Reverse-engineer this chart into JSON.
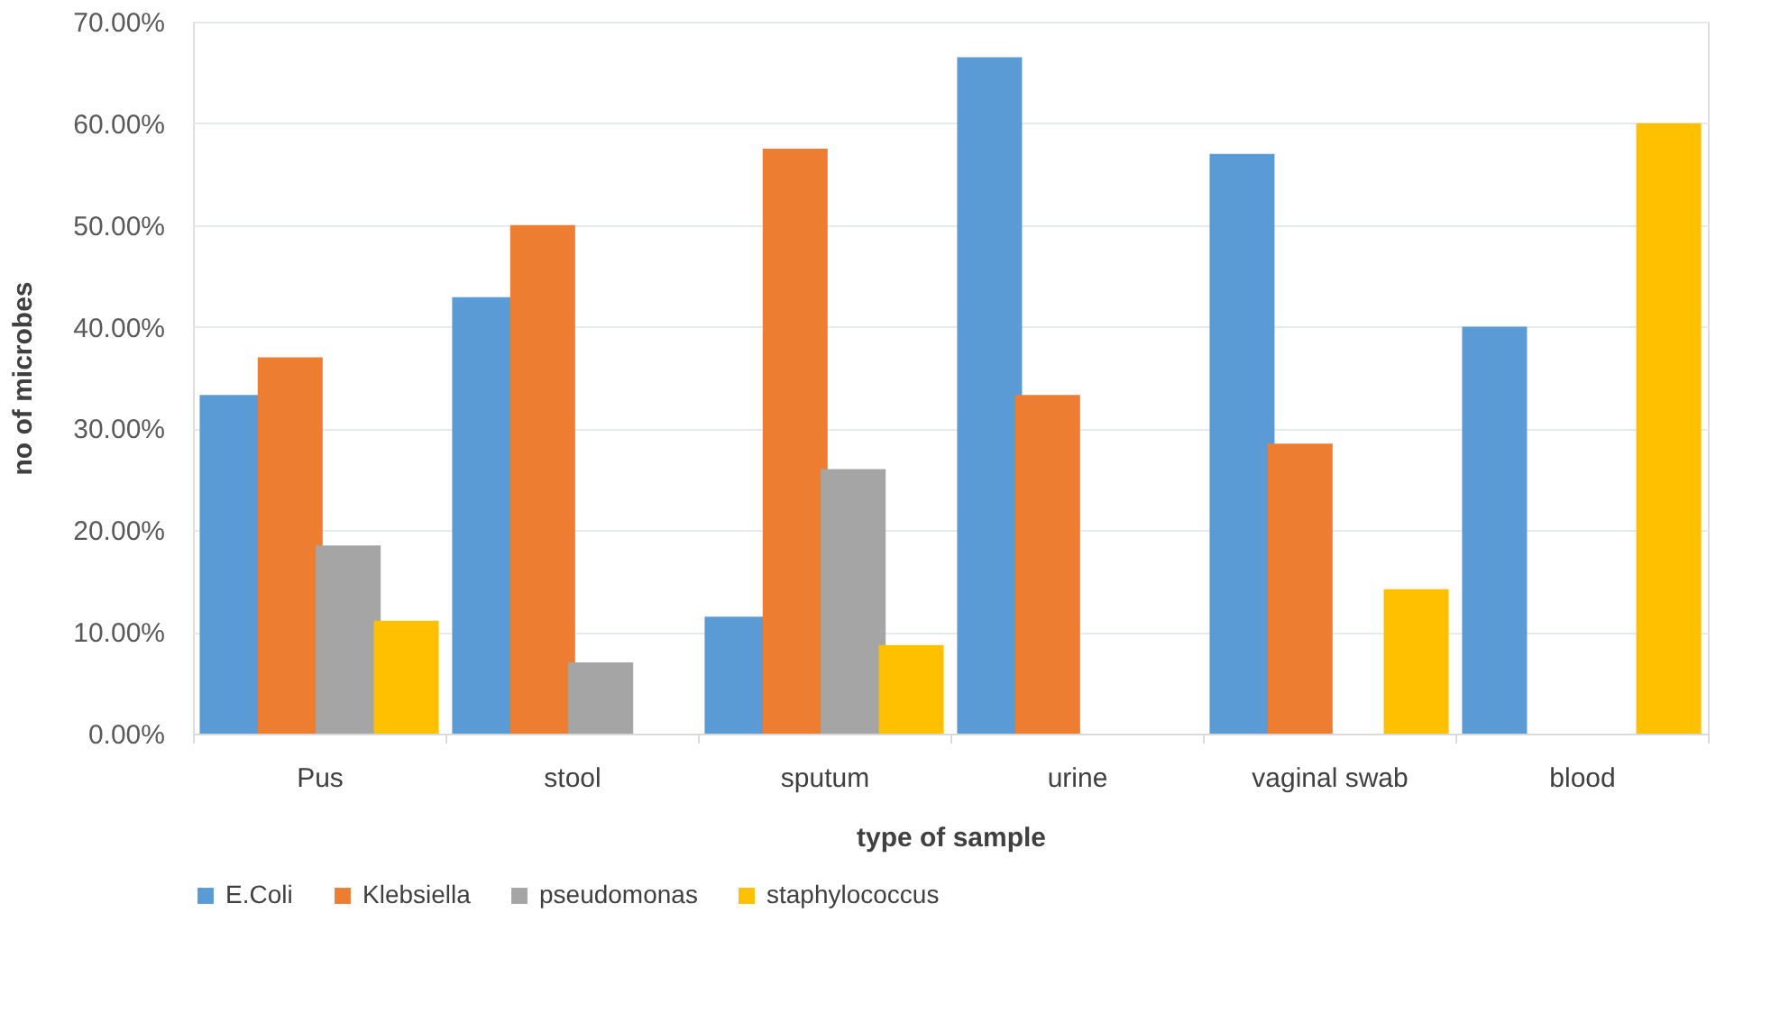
{
  "chart_data": {
    "type": "bar",
    "xlabel": "type of sample",
    "ylabel": "no of microbes",
    "categories": [
      "Pus",
      "stool",
      "sputum",
      "urine",
      "vaginal swab",
      "blood"
    ],
    "series": [
      {
        "name": "E.Coli",
        "color": "#5b9bd5",
        "values": [
          33.3,
          42.9,
          11.5,
          66.5,
          57.0,
          40.0
        ]
      },
      {
        "name": "Klebsiella",
        "color": "#ed7d31",
        "values": [
          37.0,
          50.0,
          57.5,
          33.3,
          28.5,
          null
        ]
      },
      {
        "name": "pseudomonas",
        "color": "#a5a5a5",
        "values": [
          18.5,
          7.0,
          26.0,
          null,
          null,
          null
        ]
      },
      {
        "name": "staphylococcus",
        "color": "#ffc000",
        "values": [
          11.1,
          null,
          8.7,
          null,
          14.2,
          60.0
        ]
      }
    ],
    "ylim": [
      0,
      70
    ],
    "yticks": [
      {
        "value": 0,
        "label": "0.00%"
      },
      {
        "value": 10,
        "label": "10.00%"
      },
      {
        "value": 20,
        "label": "20.00%"
      },
      {
        "value": 30,
        "label": "30.00%"
      },
      {
        "value": 40,
        "label": "40.00%"
      },
      {
        "value": 50,
        "label": "50.00%"
      },
      {
        "value": 60,
        "label": "60.00%"
      },
      {
        "value": 70,
        "label": "70.00%"
      }
    ],
    "grid": "y",
    "legend": "bottom"
  }
}
